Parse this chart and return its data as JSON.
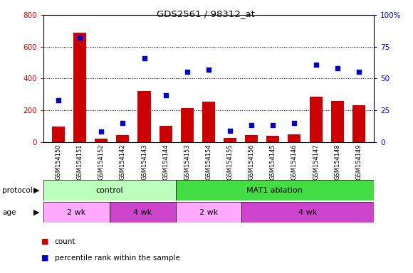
{
  "title": "GDS2561 / 98312_at",
  "samples": [
    "GSM154150",
    "GSM154151",
    "GSM154152",
    "GSM154142",
    "GSM154143",
    "GSM154144",
    "GSM154153",
    "GSM154154",
    "GSM154155",
    "GSM154156",
    "GSM154145",
    "GSM154146",
    "GSM154147",
    "GSM154148",
    "GSM154149"
  ],
  "counts": [
    95,
    690,
    20,
    45,
    320,
    100,
    215,
    255,
    25,
    45,
    40,
    48,
    285,
    260,
    230
  ],
  "percentiles": [
    33,
    82,
    8,
    15,
    66,
    37,
    55,
    57,
    9,
    13,
    13,
    15,
    61,
    58,
    55
  ],
  "ylim_left": [
    0,
    800
  ],
  "ylim_right": [
    0,
    100
  ],
  "yticks_left": [
    0,
    200,
    400,
    600,
    800
  ],
  "yticks_right": [
    0,
    25,
    50,
    75,
    100
  ],
  "bar_color": "#cc0000",
  "dot_color": "#0000cc",
  "protocol_groups": [
    {
      "label": "control",
      "start": 0,
      "end": 6,
      "color": "#bbffbb"
    },
    {
      "label": "MAT1 ablation",
      "start": 6,
      "end": 15,
      "color": "#44dd44"
    }
  ],
  "age_groups": [
    {
      "label": "2 wk",
      "start": 0,
      "end": 3,
      "color": "#ffaaff"
    },
    {
      "label": "4 wk",
      "start": 3,
      "end": 6,
      "color": "#cc44cc"
    },
    {
      "label": "2 wk",
      "start": 6,
      "end": 9,
      "color": "#ffaaff"
    },
    {
      "label": "4 wk",
      "start": 9,
      "end": 15,
      "color": "#cc44cc"
    }
  ],
  "bar_color_hex": "#cc0000",
  "dot_color_hex": "#0000cc",
  "background_color": "#ffffff",
  "plot_bg_color": "#ffffff",
  "legend_count_label": "count",
  "legend_pct_label": "percentile rank within the sample"
}
